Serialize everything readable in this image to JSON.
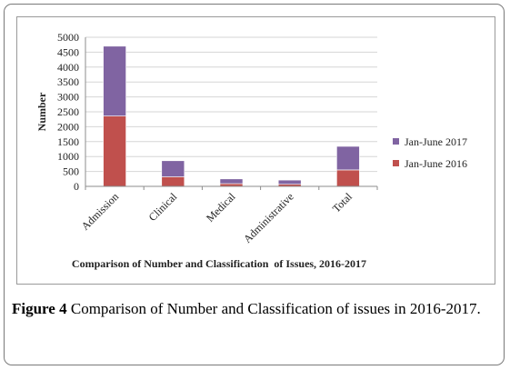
{
  "chart_data": {
    "type": "bar",
    "stacked": true,
    "title": "Comparison of Number and Classification  of Issues, 2016-2017",
    "xlabel": "",
    "ylabel": "Number",
    "ylim": [
      0,
      5000
    ],
    "ytick_step": 500,
    "yticks": [
      "0",
      "500",
      "1000",
      "1500",
      "2000",
      "2500",
      "3000",
      "3500",
      "4000",
      "4500",
      "5000"
    ],
    "grid": true,
    "legend_position": "right",
    "categories": [
      "Admission",
      "Clinical",
      "Medical",
      "Administrative",
      "Total"
    ],
    "series": [
      {
        "name": "Jan-June 2016",
        "color": "#c0504d",
        "values": [
          2360,
          320,
          90,
          70,
          550
        ]
      },
      {
        "name": "Jan-June 2017",
        "color": "#8064a2",
        "values": [
          2340,
          540,
          160,
          140,
          790
        ]
      }
    ]
  },
  "caption": {
    "label": "Figure 4",
    "text": " Comparison of Number and Classification of issues in 2016-2017."
  }
}
